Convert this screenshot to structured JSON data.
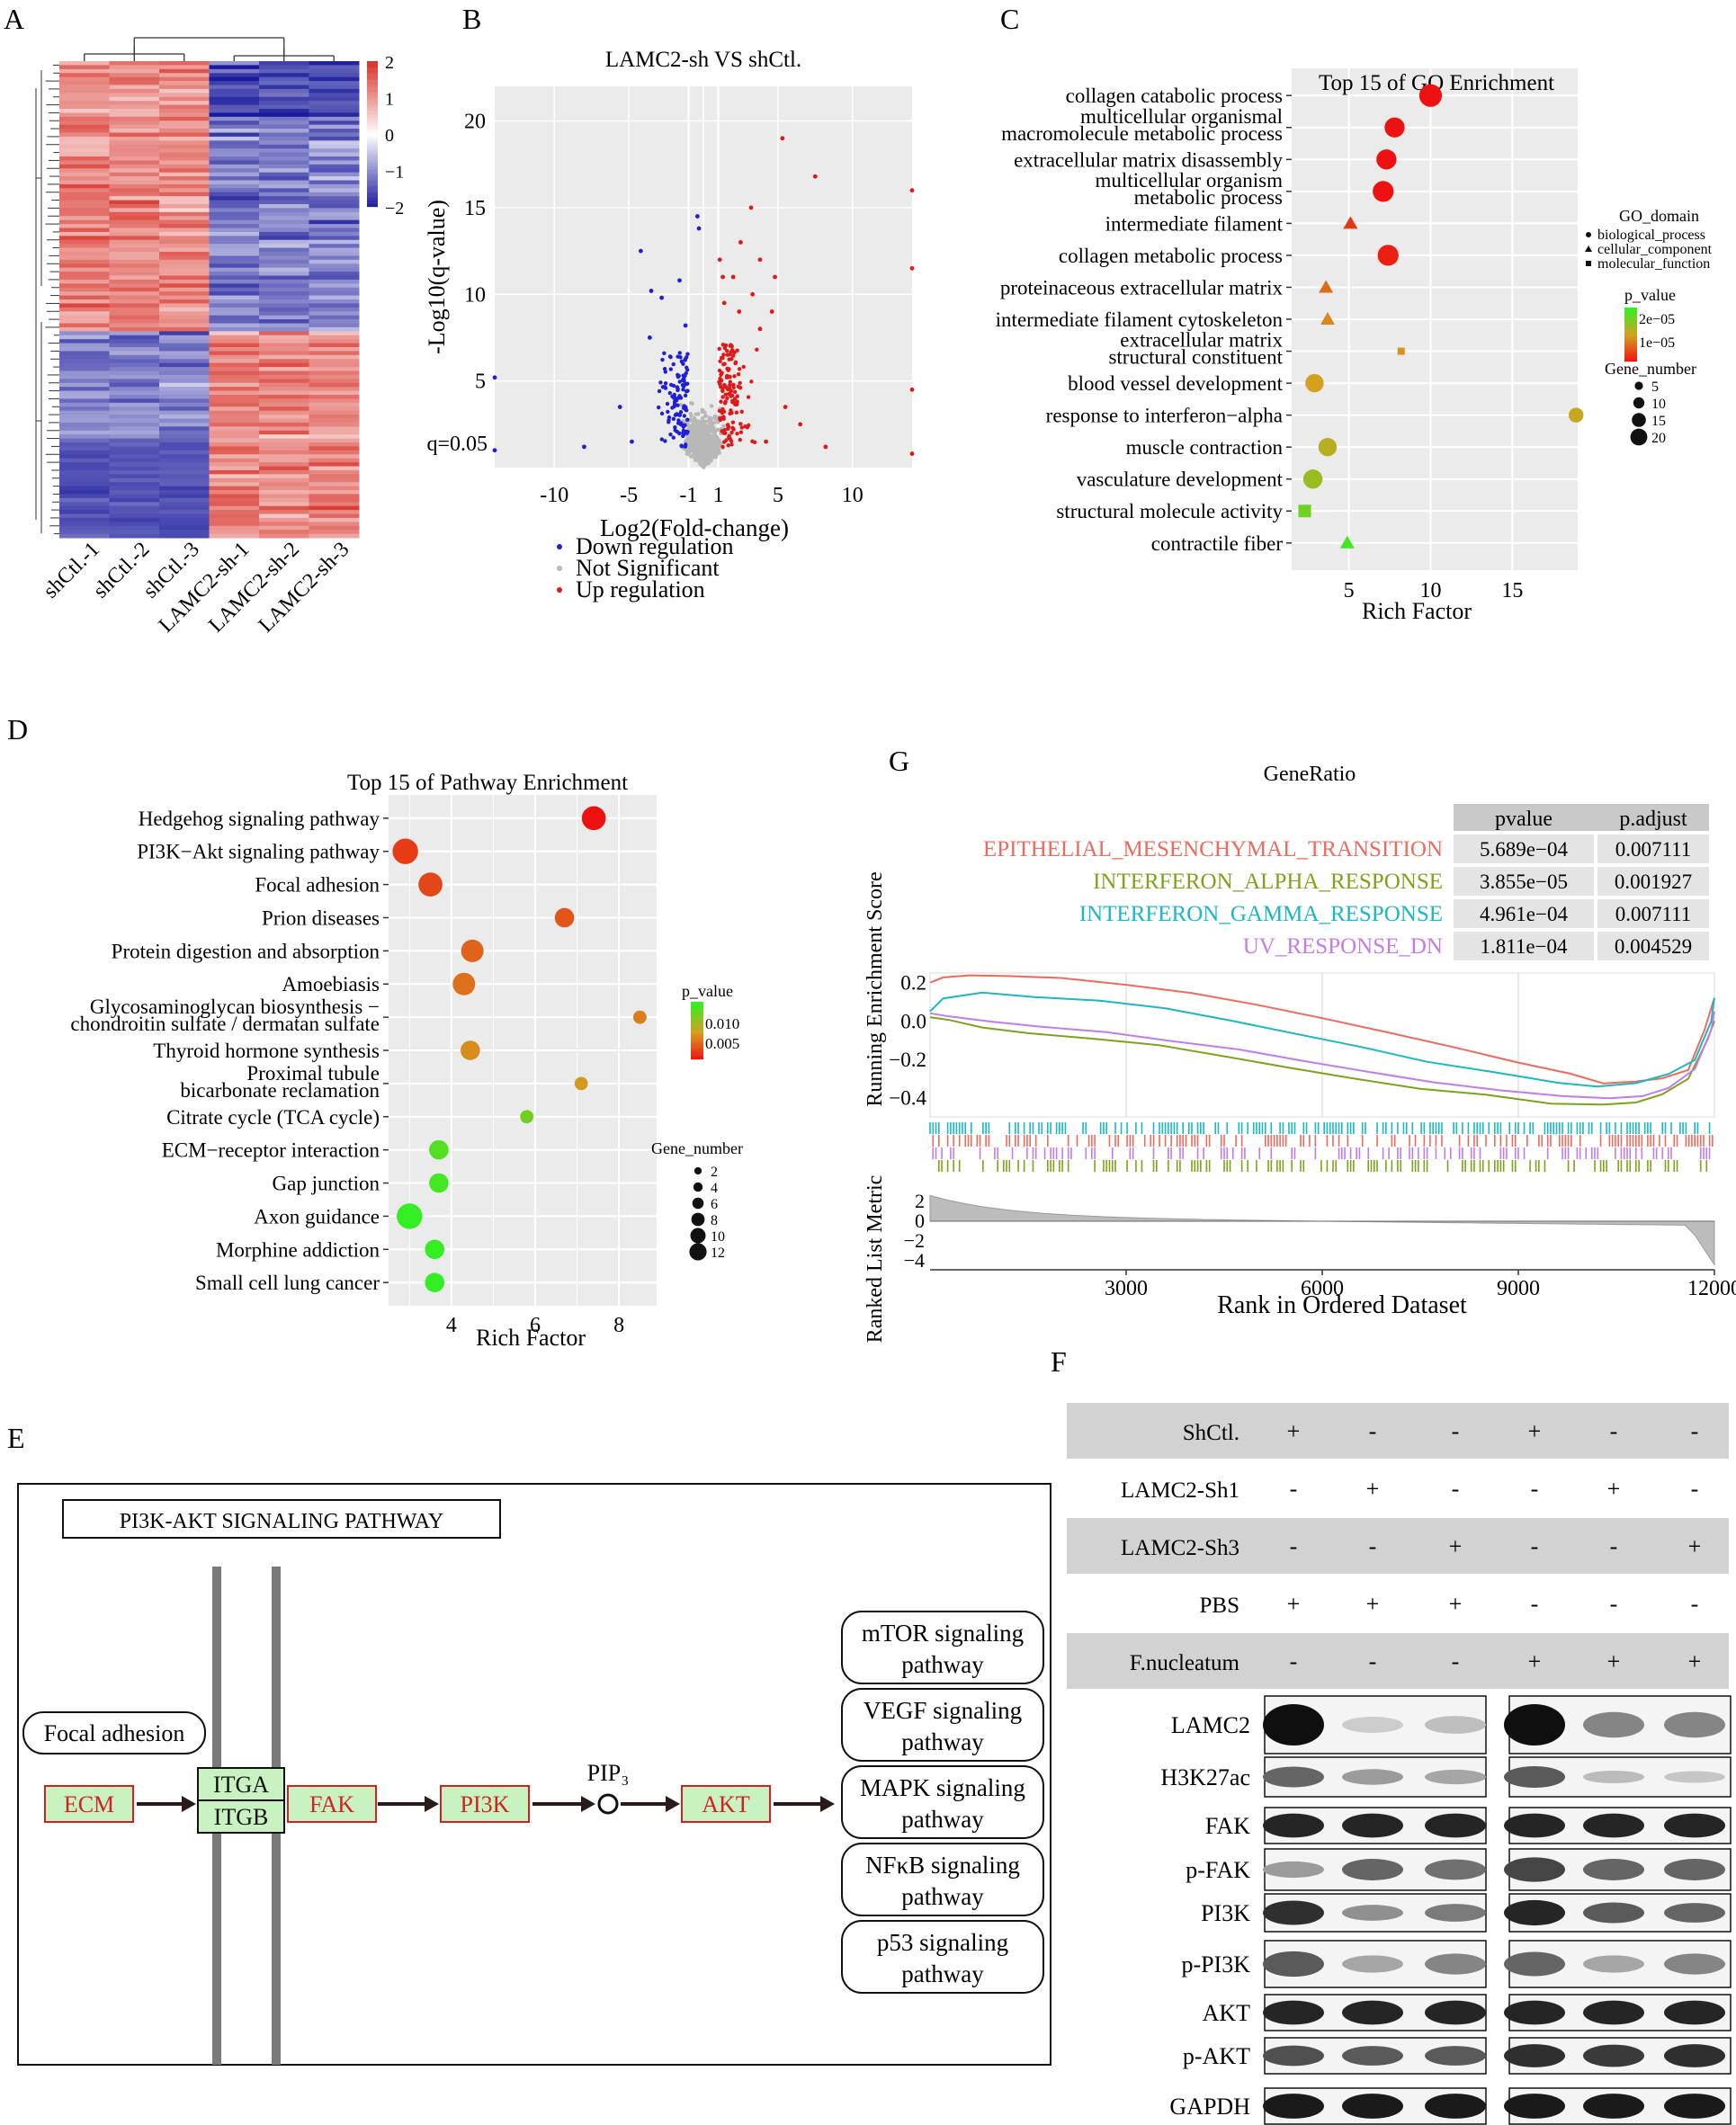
{
  "panel_labels": {
    "A": "A",
    "B": "B",
    "C": "C",
    "D": "D",
    "E": "E",
    "F": "F",
    "G": "G"
  },
  "chart_data": [
    {
      "panel": "A",
      "type": "heatmap",
      "columns": [
        "shCtl.-1",
        "shCtl.-2",
        "shCtl.-3",
        "LAMC2-sh-1",
        "LAMC2-sh-2",
        "LAMC2-sh-3"
      ],
      "color_scale": {
        "ticks": [
          "2",
          "1",
          "0",
          "−1",
          "−2"
        ],
        "high": "#d73027",
        "mid": "#ffffff",
        "low": "#1a1a9c"
      },
      "pattern": "upper cluster high in shCtl, low in LAMC2-sh; lower cluster the reverse"
    },
    {
      "panel": "B",
      "type": "scatter",
      "title": "LAMC2-sh VS shCtl.",
      "xlabel": "Log2(Fold-change)",
      "ylabel": "-Log10(q-value)",
      "x_ticks": [
        "-10",
        "-5",
        "-1",
        "1",
        "5",
        "10"
      ],
      "y_ticks": [
        "20",
        "15",
        "10",
        "5"
      ],
      "threshold_label": "q=0.05",
      "xlim": [
        -14,
        14
      ],
      "ylim": [
        0,
        22
      ],
      "legend": [
        "Down regulation",
        "Not Significant",
        "Up regulation"
      ],
      "colors": {
        "down": "#1f1fd6",
        "ns": "#b8b8b8",
        "up": "#e01818"
      },
      "highlight_points": {
        "up": [
          [
            1.1,
            12
          ],
          [
            2.5,
            13
          ],
          [
            3.2,
            15
          ],
          [
            5.3,
            19
          ],
          [
            3.8,
            12
          ],
          [
            1.3,
            11
          ],
          [
            2.0,
            11
          ],
          [
            4.8,
            11
          ],
          [
            3.3,
            10
          ],
          [
            7.5,
            16.8
          ],
          [
            14,
            16
          ],
          [
            14,
            11.5
          ],
          [
            4.6,
            9
          ],
          [
            2.4,
            9
          ],
          [
            1.4,
            9.5
          ],
          [
            1.9,
            7
          ],
          [
            3.8,
            8
          ],
          [
            14,
            4.5
          ],
          [
            14,
            0.8
          ],
          [
            5.5,
            3.5
          ],
          [
            6.5,
            2.5
          ],
          [
            4.2,
            1.5
          ],
          [
            8.2,
            1.2
          ]
        ],
        "down": [
          [
            -0.4,
            14.5
          ],
          [
            -0.3,
            13.8
          ],
          [
            -4.2,
            12.5
          ],
          [
            -3.5,
            10.2
          ],
          [
            -1.6,
            10.8
          ],
          [
            -2.8,
            9.8
          ],
          [
            -1.2,
            8.2
          ],
          [
            -14,
            5.2
          ],
          [
            -3.6,
            7.5
          ],
          [
            -5.6,
            3.5
          ],
          [
            -14,
            1
          ],
          [
            -4.8,
            1.5
          ],
          [
            -8,
            1.2
          ]
        ]
      }
    },
    {
      "panel": "C",
      "type": "scatter",
      "title": "Top 15 of GO Enrichment",
      "xlabel": "Rich Factor",
      "x_ticks": [
        5,
        10,
        15
      ],
      "xlim": [
        1.5,
        19
      ],
      "terms": [
        {
          "label": [
            "collagen catabolic process"
          ],
          "x": 10.0,
          "n": 20,
          "p": 5e-06,
          "shape": "circle"
        },
        {
          "label": [
            "multicellular organismal",
            "macromolecule metabolic process"
          ],
          "x": 7.8,
          "n": 17,
          "p": 5e-06,
          "shape": "circle"
        },
        {
          "label": [
            "extracellular matrix disassembly"
          ],
          "x": 7.3,
          "n": 17,
          "p": 5e-06,
          "shape": "circle"
        },
        {
          "label": [
            "multicellular organism",
            "metabolic process"
          ],
          "x": 7.1,
          "n": 18,
          "p": 5e-06,
          "shape": "circle"
        },
        {
          "label": [
            "intermediate filament"
          ],
          "x": 5.1,
          "n": 3,
          "p": 8e-06,
          "shape": "triangle"
        },
        {
          "label": [
            "collagen metabolic process"
          ],
          "x": 7.4,
          "n": 18,
          "p": 6e-06,
          "shape": "circle"
        },
        {
          "label": [
            "proteinaceous extracellular matrix"
          ],
          "x": 3.6,
          "n": 5,
          "p": 1.2e-05,
          "shape": "triangle"
        },
        {
          "label": [
            "intermediate filament cytoskeleton"
          ],
          "x": 3.7,
          "n": 4,
          "p": 1.4e-05,
          "shape": "triangle"
        },
        {
          "label": [
            "extracellular matrix",
            "structural constituent"
          ],
          "x": 8.2,
          "n": 2,
          "p": 1.5e-05,
          "shape": "square"
        },
        {
          "label": [
            "blood vessel development"
          ],
          "x": 2.9,
          "n": 15,
          "p": 1.6e-05,
          "shape": "circle"
        },
        {
          "label": [
            "response to interferon−alpha"
          ],
          "x": 18.9,
          "n": 11,
          "p": 1.7e-05,
          "shape": "circle"
        },
        {
          "label": [
            "muscle contraction"
          ],
          "x": 3.7,
          "n": 15,
          "p": 1.8e-05,
          "shape": "circle"
        },
        {
          "label": [
            "vasculature development"
          ],
          "x": 2.8,
          "n": 16,
          "p": 2e-05,
          "shape": "circle"
        },
        {
          "label": [
            "structural molecule activity"
          ],
          "x": 2.3,
          "n": 8,
          "p": 2.3e-05,
          "shape": "square"
        },
        {
          "label": [
            "contractile fiber"
          ],
          "x": 4.9,
          "n": 5,
          "p": 2.6e-05,
          "shape": "triangle"
        }
      ],
      "legend": {
        "shape_title": "GO_domain",
        "shapes": [
          "biological_process",
          "cellular_component",
          "molecular_function"
        ],
        "color_title": "p_value",
        "color_ticks": [
          "2e−05",
          "1e−05"
        ],
        "size_title": "Gene_number",
        "size_ticks": [
          "5",
          "10",
          "15",
          "20"
        ]
      }
    },
    {
      "panel": "D",
      "type": "scatter",
      "title": "Top 15 of Pathway Enrichment",
      "xlabel": "Rich Factor",
      "x_ticks": [
        4,
        6,
        8
      ],
      "xlim": [
        2.5,
        8.9
      ],
      "terms": [
        {
          "label": [
            "Hedgehog signaling pathway"
          ],
          "x": 7.4,
          "n": 11,
          "p": 0.001
        },
        {
          "label": [
            "PI3K−Akt signaling pathway"
          ],
          "x": 2.9,
          "n": 12,
          "p": 0.0025
        },
        {
          "label": [
            "Focal adhesion"
          ],
          "x": 3.5,
          "n": 11,
          "p": 0.003
        },
        {
          "label": [
            "Prion diseases"
          ],
          "x": 6.7,
          "n": 8,
          "p": 0.0035
        },
        {
          "label": [
            "Protein digestion and absorption"
          ],
          "x": 4.5,
          "n": 10,
          "p": 0.004
        },
        {
          "label": [
            "Amoebiasis"
          ],
          "x": 4.3,
          "n": 10,
          "p": 0.0045
        },
        {
          "label": [
            "Glycosaminoglycan biosynthesis −",
            "chondroitin sulfate / dermatan sulfate"
          ],
          "x": 8.5,
          "n": 4,
          "p": 0.005
        },
        {
          "label": [
            "Thyroid hormone synthesis"
          ],
          "x": 4.45,
          "n": 8,
          "p": 0.0055
        },
        {
          "label": [
            "Proximal tubule",
            "bicarbonate reclamation"
          ],
          "x": 7.1,
          "n": 4,
          "p": 0.006
        },
        {
          "label": [
            "Citrate cycle (TCA cycle)"
          ],
          "x": 5.8,
          "n": 4,
          "p": 0.0095
        },
        {
          "label": [
            "ECM−receptor interaction"
          ],
          "x": 3.7,
          "n": 8,
          "p": 0.0105
        },
        {
          "label": [
            "Gap junction"
          ],
          "x": 3.7,
          "n": 8,
          "p": 0.011
        },
        {
          "label": [
            "Axon guidance"
          ],
          "x": 3.0,
          "n": 12,
          "p": 0.0115
        },
        {
          "label": [
            "Morphine addiction"
          ],
          "x": 3.6,
          "n": 8,
          "p": 0.0115
        },
        {
          "label": [
            "Small cell lung cancer"
          ],
          "x": 3.6,
          "n": 8,
          "p": 0.0115
        }
      ],
      "legend": {
        "color_title": "p_value",
        "color_ticks": [
          "0.010",
          "0.005"
        ],
        "size_title": "Gene_number",
        "size_ticks": [
          "2",
          "4",
          "6",
          "8",
          "10",
          "12"
        ]
      }
    },
    {
      "panel": "G",
      "type": "line",
      "title": "GeneRatio",
      "xlabel": "Rank in Ordered Dataset",
      "ylabel_top": "Running Enrichment Score",
      "ylabel_bottom": "Ranked List Metric",
      "x_ticks": [
        "3000",
        "6000",
        "9000",
        "12000"
      ],
      "y_ticks_top": [
        "0.2",
        "0.0",
        "−0.2",
        "−0.4"
      ],
      "y_ticks_bottom": [
        "2",
        "0",
        "−2",
        "−4"
      ],
      "xlim": [
        0,
        12000
      ],
      "table_headers": [
        "pvalue",
        "p.adjust"
      ],
      "series": [
        {
          "name": "EPITHELIAL_MESENCHYMAL_TRANSITION",
          "pvalue": "5.689e−04",
          "padjust": "0.007111",
          "color": "#f06a5c",
          "x": [
            0,
            200,
            600,
            1200,
            2000,
            3000,
            4000,
            5000,
            6000,
            7000,
            8000,
            9000,
            9800,
            10300,
            10800,
            11200,
            11600,
            11850,
            12000
          ],
          "y": [
            0.2,
            0.23,
            0.24,
            0.23,
            0.22,
            0.19,
            0.14,
            0.08,
            0.02,
            -0.06,
            -0.14,
            -0.22,
            -0.28,
            -0.32,
            -0.32,
            -0.3,
            -0.25,
            -0.05,
            0.12
          ]
        },
        {
          "name": "INTERFERON_ALPHA_RESPONSE",
          "pvalue": "3.855e−05",
          "padjust": "0.001927",
          "color": "#7ea31a",
          "x": [
            0,
            300,
            800,
            1500,
            2500,
            3500,
            4500,
            5500,
            6500,
            7500,
            8500,
            9500,
            10300,
            10800,
            11200,
            11600,
            11900,
            12000
          ],
          "y": [
            0.02,
            0.0,
            -0.03,
            -0.06,
            -0.09,
            -0.13,
            -0.18,
            -0.24,
            -0.3,
            -0.35,
            -0.39,
            -0.43,
            -0.44,
            -0.42,
            -0.38,
            -0.3,
            -0.1,
            0.0
          ]
        },
        {
          "name": "INTERFERON_GAMMA_RESPONSE",
          "pvalue": "4.961e−04",
          "padjust": "0.007111",
          "color": "#1ab8c4",
          "x": [
            0,
            200,
            800,
            1600,
            2600,
            3600,
            4600,
            5600,
            6600,
            7600,
            8600,
            9600,
            10200,
            10800,
            11300,
            11700,
            11950,
            12000
          ],
          "y": [
            0.05,
            0.12,
            0.15,
            0.13,
            0.1,
            0.06,
            0.0,
            -0.07,
            -0.14,
            -0.21,
            -0.27,
            -0.32,
            -0.34,
            -0.33,
            -0.28,
            -0.2,
            0.0,
            0.12
          ]
        },
        {
          "name": "UV_RESPONSE_DN",
          "pvalue": "1.811e−04",
          "padjust": "0.004529",
          "color": "#c47be8",
          "x": [
            0,
            300,
            900,
            1700,
            2700,
            3700,
            4700,
            5700,
            6700,
            7700,
            8700,
            9700,
            10400,
            10900,
            11300,
            11700,
            11950,
            12000
          ],
          "y": [
            0.04,
            0.02,
            0.0,
            -0.03,
            -0.06,
            -0.1,
            -0.15,
            -0.21,
            -0.27,
            -0.32,
            -0.36,
            -0.39,
            -0.4,
            -0.39,
            -0.35,
            -0.25,
            -0.05,
            0.05
          ]
        }
      ]
    },
    {
      "panel": "F",
      "type": "table",
      "conditions": [
        {
          "name": "ShCtl.",
          "values": [
            "+",
            "-",
            "-",
            "+",
            "-",
            "-"
          ]
        },
        {
          "name": "LAMC2-Sh1",
          "values": [
            "-",
            "+",
            "-",
            "-",
            "+",
            "-"
          ]
        },
        {
          "name": "LAMC2-Sh3",
          "values": [
            "-",
            "-",
            "+",
            "-",
            "-",
            "+"
          ]
        },
        {
          "name": "PBS",
          "values": [
            "+",
            "+",
            "+",
            "-",
            "-",
            "-"
          ]
        },
        {
          "name": "F.nucleatum",
          "values": [
            "-",
            "-",
            "-",
            "+",
            "+",
            "+"
          ]
        }
      ],
      "blots": [
        {
          "name": "LAMC2",
          "intensity": [
            1.0,
            0.12,
            0.18,
            1.0,
            0.45,
            0.45
          ]
        },
        {
          "name": "H3K27ac",
          "intensity": [
            0.6,
            0.35,
            0.3,
            0.65,
            0.2,
            0.15
          ]
        },
        {
          "name": "FAK",
          "intensity": [
            0.9,
            0.9,
            0.9,
            0.9,
            0.9,
            0.9
          ]
        },
        {
          "name": "p-FAK",
          "intensity": [
            0.35,
            0.6,
            0.55,
            0.75,
            0.6,
            0.6
          ]
        },
        {
          "name": "PI3K",
          "intensity": [
            0.85,
            0.4,
            0.5,
            0.9,
            0.65,
            0.6
          ]
        },
        {
          "name": "p-PI3K",
          "intensity": [
            0.65,
            0.3,
            0.45,
            0.6,
            0.3,
            0.45
          ]
        },
        {
          "name": "AKT",
          "intensity": [
            0.9,
            0.9,
            0.9,
            0.9,
            0.9,
            0.9
          ]
        },
        {
          "name": "p-AKT",
          "intensity": [
            0.7,
            0.65,
            0.65,
            0.85,
            0.8,
            0.85
          ]
        },
        {
          "name": "GAPDH",
          "intensity": [
            0.95,
            0.95,
            0.95,
            0.95,
            0.95,
            0.95
          ]
        }
      ]
    }
  ],
  "pathway": {
    "title": "PI3K-AKT SIGNALING PATHWAY",
    "focal_adhesion": "Focal adhesion",
    "nodes": [
      "ECM",
      "ITGA",
      "ITGB",
      "FAK",
      "PI3K",
      "AKT"
    ],
    "pip3": "PIP₃",
    "outputs": [
      [
        "mTOR signaling",
        "pathway"
      ],
      [
        "VEGF signaling",
        "pathway"
      ],
      [
        "MAPK signaling",
        "pathway"
      ],
      [
        "NFκB signaling",
        "pathway"
      ],
      [
        "p53 signaling",
        "pathway"
      ]
    ]
  }
}
